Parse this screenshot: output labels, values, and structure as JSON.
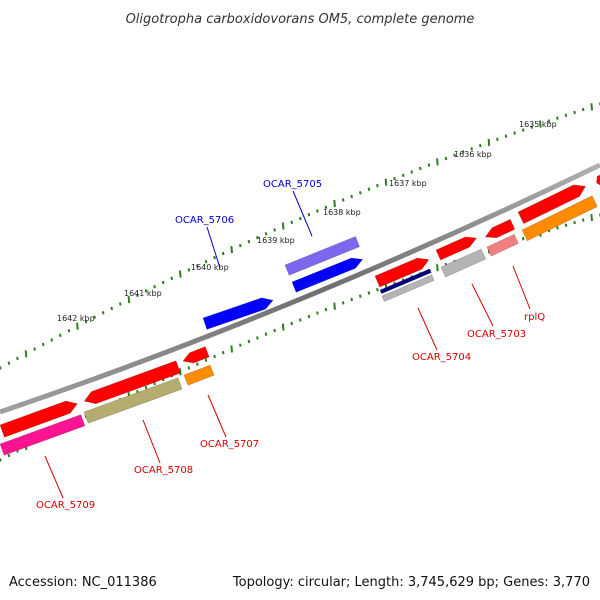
{
  "title": "Oligotropha carboxidovorans OM5, complete genome",
  "footer": {
    "accession": "Accession: NC_011386",
    "summary": "Topology: circular; Length: 3,745,629 bp; Genes: 3,770"
  },
  "colors": {
    "backbone": "#7a7a7a",
    "ticks": "#2e7d1e",
    "label_blue": "#0000cc",
    "label_red": "#d40000",
    "gene_red": "#ff0000",
    "gene_blue": "#0000ff",
    "gene_slate": "#7b68ee",
    "gene_gray": "#b4b4b4",
    "gene_orange": "#ff8c00",
    "gene_olive": "#b4ad6e",
    "gene_pink": "#ff1493",
    "gene_lightred": "#f08080",
    "gene_navy": "#000080"
  },
  "kbp_ticks": [
    "1635 kbp",
    "1636 kbp",
    "1637 kbp",
    "1638 kbp",
    "1639 kbp",
    "1640 kbp",
    "1641 kbp",
    "1642 kbp"
  ],
  "gene_labels": [
    {
      "name": "OCAR_5705",
      "color": "blue"
    },
    {
      "name": "OCAR_5706",
      "color": "blue"
    },
    {
      "name": "OCAR_5703",
      "color": "red"
    },
    {
      "name": "rplQ",
      "color": "red"
    },
    {
      "name": "OCAR_5704",
      "color": "red"
    },
    {
      "name": "OCAR_5707",
      "color": "red"
    },
    {
      "name": "OCAR_5708",
      "color": "red"
    },
    {
      "name": "OCAR_5709",
      "color": "red"
    }
  ]
}
